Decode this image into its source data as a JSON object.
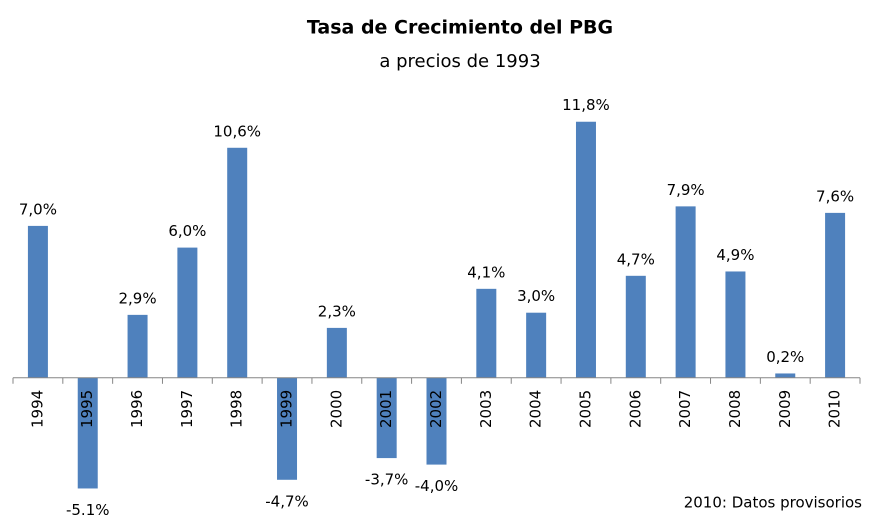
{
  "chart_data": {
    "type": "bar",
    "title": "Tasa de Crecimiento del PBG",
    "subtitle": "a precios de 1993",
    "categories": [
      "1994",
      "1995",
      "1996",
      "1997",
      "1998",
      "1999",
      "2000",
      "2001",
      "2002",
      "2003",
      "2004",
      "2005",
      "2006",
      "2007",
      "2008",
      "2009",
      "2010"
    ],
    "values": [
      7.0,
      -5.1,
      2.9,
      6.0,
      10.6,
      -4.7,
      2.3,
      -3.7,
      -4.0,
      4.1,
      3.0,
      11.8,
      4.7,
      7.9,
      4.9,
      0.2,
      7.6
    ],
    "value_labels": [
      "7,0%",
      "-5.1%",
      "2,9%",
      "6,0%",
      "10,6%",
      "-4,7%",
      "2,3%",
      "-3,7%",
      "-4,0%",
      "4,1%",
      "3,0%",
      "11,8%",
      "4,7%",
      "7,9%",
      "4,9%",
      "0,2%",
      "7,6%"
    ],
    "color": "#4f81bd",
    "ylim": [
      -6,
      14
    ],
    "annotation": "2010: Datos provisorios"
  }
}
